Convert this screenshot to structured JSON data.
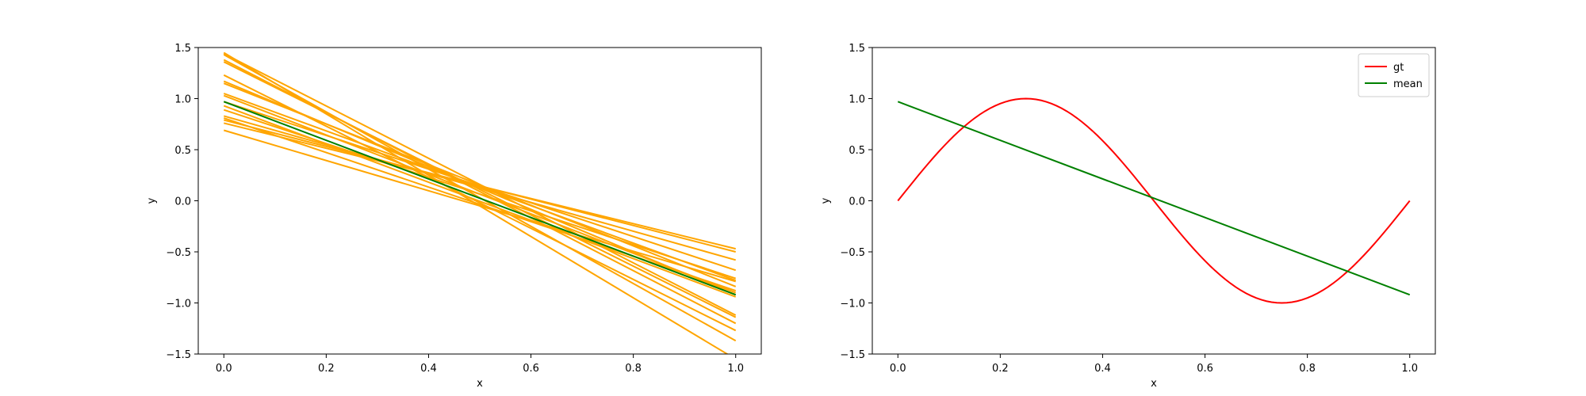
{
  "chart_data": [
    {
      "type": "line",
      "title": "",
      "xlabel": "x",
      "ylabel": "y",
      "xlim": [
        -0.05,
        1.05
      ],
      "ylim": [
        -1.5,
        1.5
      ],
      "xticks": [
        "0.0",
        "0.2",
        "0.4",
        "0.6",
        "0.8",
        "1.0"
      ],
      "yticks": [
        "1.5",
        "1.0",
        "0.5",
        "0.0",
        "−0.5",
        "−1.0",
        "−1.5"
      ],
      "legend": null,
      "series": [
        {
          "color": "#ffa500",
          "x": [
            0,
            1
          ],
          "y": [
            1.45,
            -1.55
          ]
        },
        {
          "color": "#ffa500",
          "x": [
            0,
            1
          ],
          "y": [
            1.43,
            -1.37
          ]
        },
        {
          "color": "#ffa500",
          "x": [
            0,
            1
          ],
          "y": [
            1.38,
            -1.2
          ]
        },
        {
          "color": "#ffa500",
          "x": [
            0,
            1
          ],
          "y": [
            1.36,
            -1.14
          ]
        },
        {
          "color": "#ffa500",
          "x": [
            0,
            1
          ],
          "y": [
            1.23,
            -1.27
          ]
        },
        {
          "color": "#ffa500",
          "x": [
            0,
            1
          ],
          "y": [
            1.17,
            -0.92
          ]
        },
        {
          "color": "#ffa500",
          "x": [
            0,
            1
          ],
          "y": [
            1.15,
            -0.84
          ]
        },
        {
          "color": "#ffa500",
          "x": [
            0,
            1
          ],
          "y": [
            1.05,
            -0.78
          ]
        },
        {
          "color": "#ffa500",
          "x": [
            0,
            1
          ],
          "y": [
            1.03,
            -0.9
          ]
        },
        {
          "color": "#ffa500",
          "x": [
            0,
            1
          ],
          "y": [
            0.97,
            -0.68
          ]
        },
        {
          "color": "#ffa500",
          "x": [
            0,
            1
          ],
          "y": [
            0.93,
            -0.94
          ]
        },
        {
          "color": "#ffa500",
          "x": [
            0,
            1
          ],
          "y": [
            0.89,
            -0.76
          ]
        },
        {
          "color": "#ffa500",
          "x": [
            0,
            1
          ],
          "y": [
            0.83,
            -0.58
          ]
        },
        {
          "color": "#ffa500",
          "x": [
            0,
            1
          ],
          "y": [
            0.81,
            -0.88
          ]
        },
        {
          "color": "#ffa500",
          "x": [
            0,
            1
          ],
          "y": [
            0.79,
            -0.5
          ]
        },
        {
          "color": "#ffa500",
          "x": [
            0,
            1
          ],
          "y": [
            0.76,
            -0.47
          ]
        },
        {
          "color": "#ffa500",
          "x": [
            0,
            1
          ],
          "y": [
            0.69,
            -0.79
          ]
        },
        {
          "color": "#ffa500",
          "x": [
            0,
            1
          ],
          "y": [
            1.44,
            -1.12
          ]
        },
        {
          "color": "#008000",
          "x": [
            0,
            1
          ],
          "y": [
            0.97,
            -0.92
          ]
        }
      ]
    },
    {
      "type": "line",
      "title": "",
      "xlabel": "x",
      "ylabel": "y",
      "xlim": [
        -0.05,
        1.05
      ],
      "ylim": [
        -1.5,
        1.5
      ],
      "xticks": [
        "0.0",
        "0.2",
        "0.4",
        "0.6",
        "0.8",
        "1.0"
      ],
      "yticks": [
        "1.5",
        "1.0",
        "0.5",
        "0.0",
        "−0.5",
        "−1.0",
        "−1.5"
      ],
      "legend": "top-right",
      "series": [
        {
          "name": "gt",
          "color": "#ff0000",
          "function": "sin(2*pi*x)",
          "x_range": [
            0,
            1
          ]
        },
        {
          "name": "mean",
          "color": "#008000",
          "x": [
            0,
            1
          ],
          "y": [
            0.97,
            -0.92
          ]
        }
      ]
    }
  ]
}
